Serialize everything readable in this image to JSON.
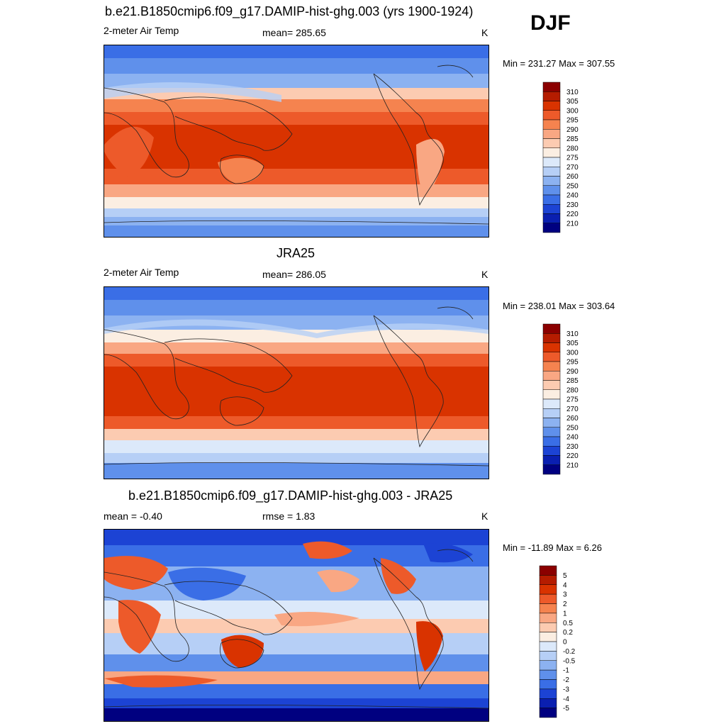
{
  "season": "DJF",
  "panels": [
    {
      "title": "b.e21.B1850cmip6.f09_g17.DAMIP-hist-ghg.003 (yrs 1900-1924)",
      "left": "2-meter Air Temp",
      "center": "mean= 285.65",
      "unit": "K",
      "minmax": "Min = 231.27 Max = 307.55"
    },
    {
      "title": "JRA25",
      "left": "2-meter Air Temp",
      "center": "mean= 286.05",
      "unit": "K",
      "minmax": "Min = 238.01 Max = 303.64"
    },
    {
      "title": "b.e21.B1850cmip6.f09_g17.DAMIP-hist-ghg.003 - JRA25",
      "left": "mean =  -0.40",
      "center": "rmse =   1.83",
      "unit": "K",
      "minmax": "Min = -11.89 Max =   6.26"
    }
  ],
  "colorbars": {
    "abs": {
      "labels": [
        "310",
        "305",
        "300",
        "295",
        "290",
        "285",
        "280",
        "275",
        "270",
        "260",
        "250",
        "240",
        "230",
        "220",
        "210"
      ],
      "colors": [
        "#8b0000",
        "#b51c00",
        "#d93300",
        "#ed5a2a",
        "#f5834f",
        "#f9a783",
        "#fccbb1",
        "#fbeee2",
        "#dce9fa",
        "#b6cff6",
        "#8cb2f1",
        "#5f90eb",
        "#3a6ee6",
        "#1c43d4",
        "#0a1fb0",
        "#000080"
      ]
    },
    "diff": {
      "labels": [
        "5",
        "4",
        "3",
        "2",
        "1",
        "0.5",
        "0.2",
        "0",
        "-0.2",
        "-0.5",
        "-1",
        "-2",
        "-3",
        "-4",
        "-5"
      ],
      "colors": [
        "#8b0000",
        "#b51c00",
        "#d93300",
        "#ed5a2a",
        "#f5834f",
        "#f9a783",
        "#fccbb1",
        "#fbeee2",
        "#dce9fa",
        "#b6cff6",
        "#8cb2f1",
        "#5f90eb",
        "#3a6ee6",
        "#1c43d4",
        "#0a1fb0",
        "#000080"
      ]
    }
  }
}
